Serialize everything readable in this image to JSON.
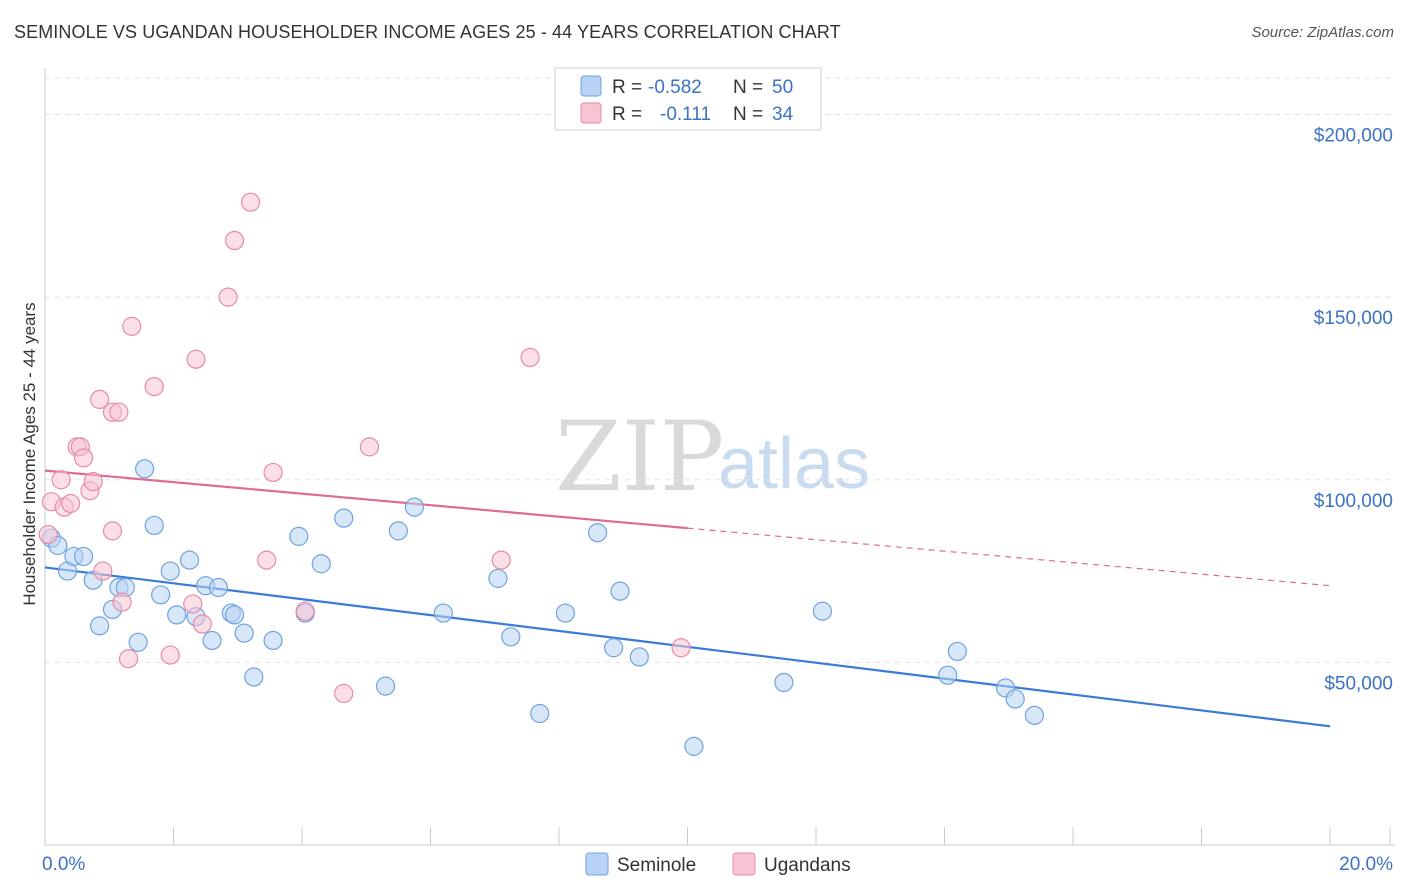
{
  "header": {
    "title": "SEMINOLE VS UGANDAN HOUSEHOLDER INCOME AGES 25 - 44 YEARS CORRELATION CHART",
    "source": "Source: ZipAtlas.com"
  },
  "watermark": {
    "zip": "ZIP",
    "atlas": "atlas"
  },
  "legend_top": [
    {
      "r_label": "R =",
      "r_value": "-0.582",
      "n_label": "N =",
      "n_value": "50",
      "color": "#6fa3e0",
      "fill": "#b8d3f3"
    },
    {
      "r_label": "R =",
      "r_value": "-0.111",
      "n_label": "N =",
      "n_value": "34",
      "color": "#e88aa6",
      "fill": "#f7c4d3"
    }
  ],
  "legend_bottom": [
    {
      "label": "Seminole",
      "color": "#6fa3e0",
      "fill": "#b8d3f3"
    },
    {
      "label": "Ugandans",
      "color": "#e88aa6",
      "fill": "#f7c4d3"
    }
  ],
  "chart_data": {
    "type": "scatter",
    "title": "SEMINOLE VS UGANDAN HOUSEHOLDER INCOME AGES 25 - 44 YEARS CORRELATION CHART",
    "xlabel": "",
    "ylabel": "Householder Income Ages 25 - 44 years",
    "xlim": [
      0,
      20
    ],
    "ylim": [
      0,
      210000
    ],
    "x_tick_labels": [
      "0.0%",
      "20.0%"
    ],
    "y_ticks": [
      50000,
      100000,
      150000,
      200000
    ],
    "y_tick_labels": [
      "$50,000",
      "$100,000",
      "$150,000",
      "$200,000"
    ],
    "grid": true,
    "series": [
      {
        "name": "Seminole",
        "color": "#3a7bd5",
        "point_fill": "#b8d3f3",
        "point_stroke": "#6fa3e0",
        "trend": {
          "x0": 0,
          "y0": 76000,
          "x1": 20,
          "y1": 32500,
          "dashed_from": null
        },
        "points": [
          [
            0.1,
            84000
          ],
          [
            0.2,
            82000
          ],
          [
            0.35,
            75000
          ],
          [
            0.45,
            79000
          ],
          [
            0.6,
            79000
          ],
          [
            0.75,
            72500
          ],
          [
            0.85,
            60000
          ],
          [
            1.05,
            64500
          ],
          [
            1.15,
            70500
          ],
          [
            1.25,
            70500
          ],
          [
            1.45,
            55500
          ],
          [
            1.55,
            103000
          ],
          [
            1.7,
            87500
          ],
          [
            1.8,
            68500
          ],
          [
            1.95,
            75000
          ],
          [
            2.05,
            63000
          ],
          [
            2.25,
            78000
          ],
          [
            2.35,
            62500
          ],
          [
            2.5,
            71000
          ],
          [
            2.6,
            56000
          ],
          [
            2.7,
            70500
          ],
          [
            2.9,
            63500
          ],
          [
            2.95,
            63000
          ],
          [
            3.1,
            58000
          ],
          [
            3.25,
            46000
          ],
          [
            3.55,
            56000
          ],
          [
            3.95,
            84500
          ],
          [
            4.05,
            63500
          ],
          [
            4.3,
            77000
          ],
          [
            4.65,
            89500
          ],
          [
            5.3,
            43500
          ],
          [
            5.5,
            86000
          ],
          [
            5.75,
            92500
          ],
          [
            6.2,
            63500
          ],
          [
            7.05,
            73000
          ],
          [
            7.25,
            57000
          ],
          [
            7.7,
            36000
          ],
          [
            8.1,
            63500
          ],
          [
            8.6,
            85500
          ],
          [
            8.85,
            54000
          ],
          [
            8.95,
            69500
          ],
          [
            9.25,
            51500
          ],
          [
            10.1,
            27000
          ],
          [
            11.5,
            44500
          ],
          [
            12.1,
            64000
          ],
          [
            14.05,
            46500
          ],
          [
            14.2,
            53000
          ],
          [
            14.95,
            43000
          ],
          [
            15.1,
            40000
          ],
          [
            15.4,
            35500
          ]
        ]
      },
      {
        "name": "Ugandans",
        "color": "#e06b92",
        "point_fill": "#f7c4d3",
        "point_stroke": "#e88aa6",
        "trend": {
          "x0": 0,
          "y0": 102500,
          "x1": 20,
          "y1": 71000,
          "dashed_from": 10
        },
        "points": [
          [
            0.05,
            85000
          ],
          [
            0.1,
            94000
          ],
          [
            0.25,
            100000
          ],
          [
            0.3,
            92500
          ],
          [
            0.4,
            93500
          ],
          [
            0.5,
            109000
          ],
          [
            0.55,
            109000
          ],
          [
            0.6,
            106000
          ],
          [
            0.7,
            97000
          ],
          [
            0.75,
            99500
          ],
          [
            0.85,
            122000
          ],
          [
            0.9,
            75000
          ],
          [
            1.05,
            118500
          ],
          [
            1.05,
            86000
          ],
          [
            1.15,
            118500
          ],
          [
            1.2,
            66500
          ],
          [
            1.3,
            51000
          ],
          [
            1.35,
            142000
          ],
          [
            1.7,
            125500
          ],
          [
            1.95,
            52000
          ],
          [
            2.3,
            66000
          ],
          [
            2.35,
            133000
          ],
          [
            2.45,
            60500
          ],
          [
            2.85,
            150000
          ],
          [
            2.95,
            165500
          ],
          [
            3.2,
            176000
          ],
          [
            3.45,
            78000
          ],
          [
            3.55,
            102000
          ],
          [
            4.05,
            64000
          ],
          [
            4.65,
            41500
          ],
          [
            5.05,
            109000
          ],
          [
            7.1,
            78000
          ],
          [
            7.55,
            133500
          ],
          [
            9.9,
            54000
          ]
        ]
      }
    ]
  }
}
